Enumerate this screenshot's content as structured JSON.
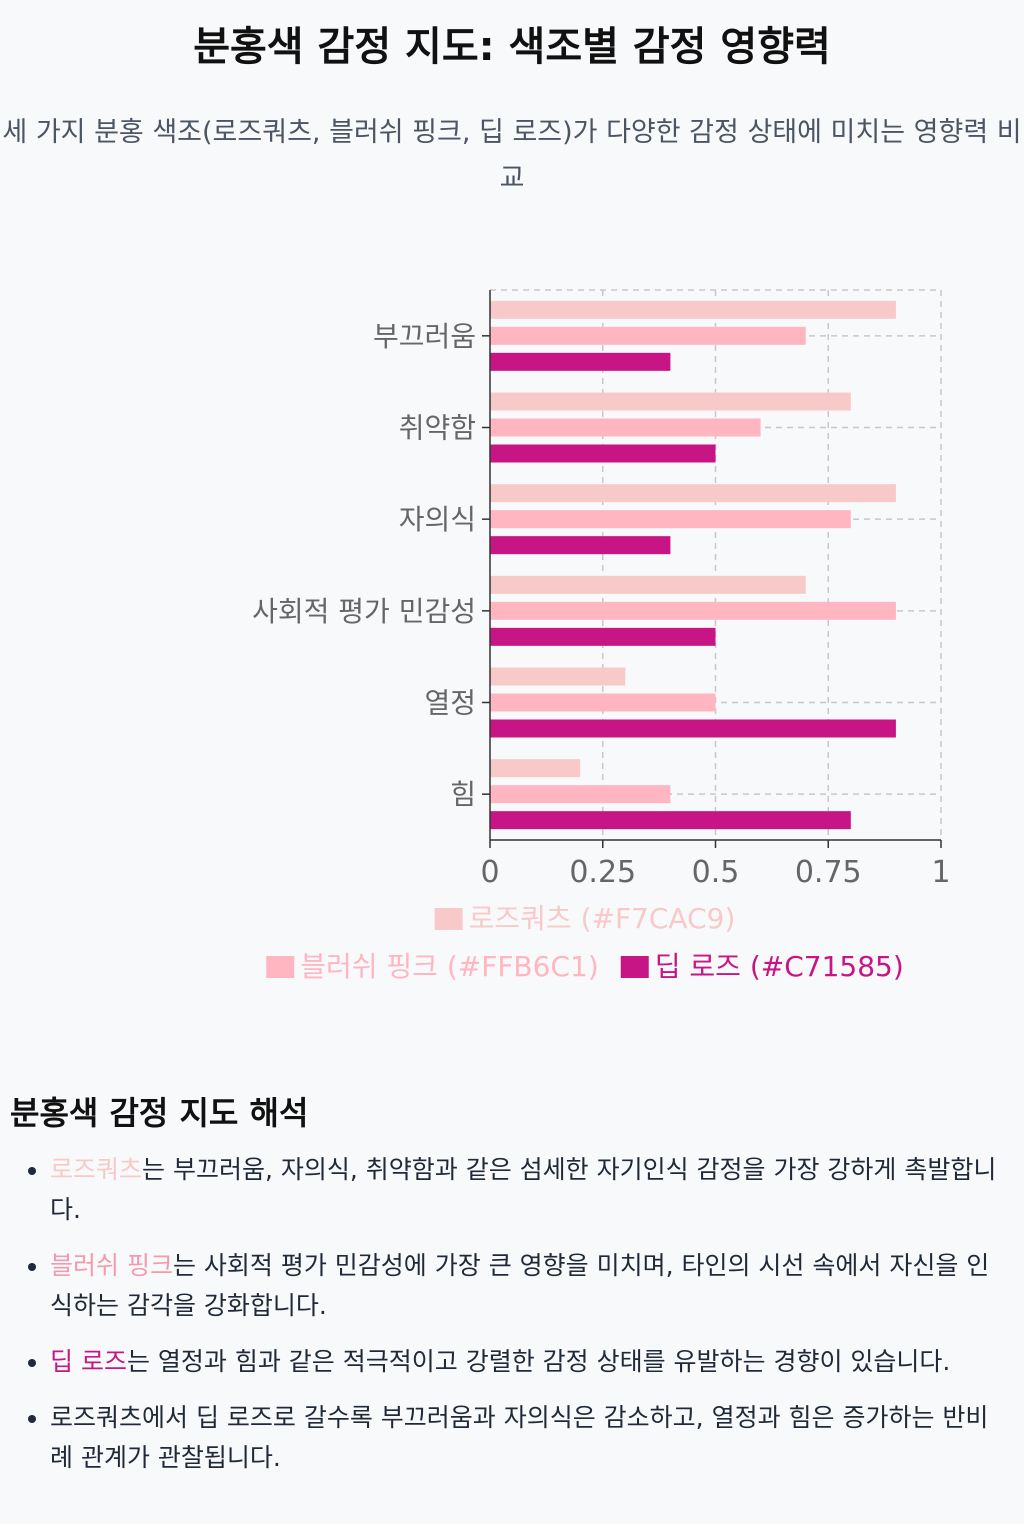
{
  "header": {
    "title": "분홍색 감정 지도: 색조별 감정 영향력",
    "subtitle": "세 가지 분홍 색조(로즈쿼츠, 블러쉬 핑크, 딥 로즈)가 다양한 감정 상태에 미치는 영향력 비교"
  },
  "chart_data": {
    "type": "bar",
    "orientation": "horizontal",
    "categories": [
      "부끄러움",
      "취약함",
      "자의식",
      "사회적 평가 민감성",
      "열정",
      "힘"
    ],
    "series": [
      {
        "name": "로즈쿼츠 (#F7CAC9)",
        "color": "#F7CAC9",
        "values": [
          0.9,
          0.8,
          0.9,
          0.7,
          0.3,
          0.2
        ]
      },
      {
        "name": "블러쉬 핑크 (#FFB6C1)",
        "color": "#FFB6C1",
        "values": [
          0.7,
          0.6,
          0.8,
          0.9,
          0.5,
          0.4
        ]
      },
      {
        "name": "딥 로즈 (#C71585)",
        "color": "#C71585",
        "values": [
          0.4,
          0.5,
          0.4,
          0.5,
          0.9,
          0.8
        ]
      }
    ],
    "xlim": [
      0,
      1
    ],
    "xticks": [
      "0",
      "0.25",
      "0.5",
      "0.75",
      "1"
    ],
    "xtick_values": [
      0,
      0.25,
      0.5,
      0.75,
      1
    ],
    "grid": true,
    "legend_position": "bottom"
  },
  "analysis": {
    "title": "분홍색 감정 지도 해석",
    "items": [
      {
        "highlight": "로즈쿼츠",
        "text": "는 부끄러움, 자의식, 취약함과 같은 섬세한 자기인식 감정을 가장 강하게 촉발합니다."
      },
      {
        "highlight": "블러쉬 핑크",
        "text": "는 사회적 평가 민감성에 가장 큰 영향을 미치며, 타인의 시선 속에서 자신을 인식하는 감각을 강화합니다."
      },
      {
        "highlight": "딥 로즈",
        "text": "는 열정과 힘과 같은 적극적이고 강렬한 감정 상태를 유발하는 경향이 있습니다."
      },
      {
        "highlight": "",
        "text": "로즈쿼츠에서 딥 로즈로 갈수록 부끄러움과 자의식은 감소하고, 열정과 힘은 증가하는 반비례 관계가 관찰됩니다."
      }
    ]
  }
}
